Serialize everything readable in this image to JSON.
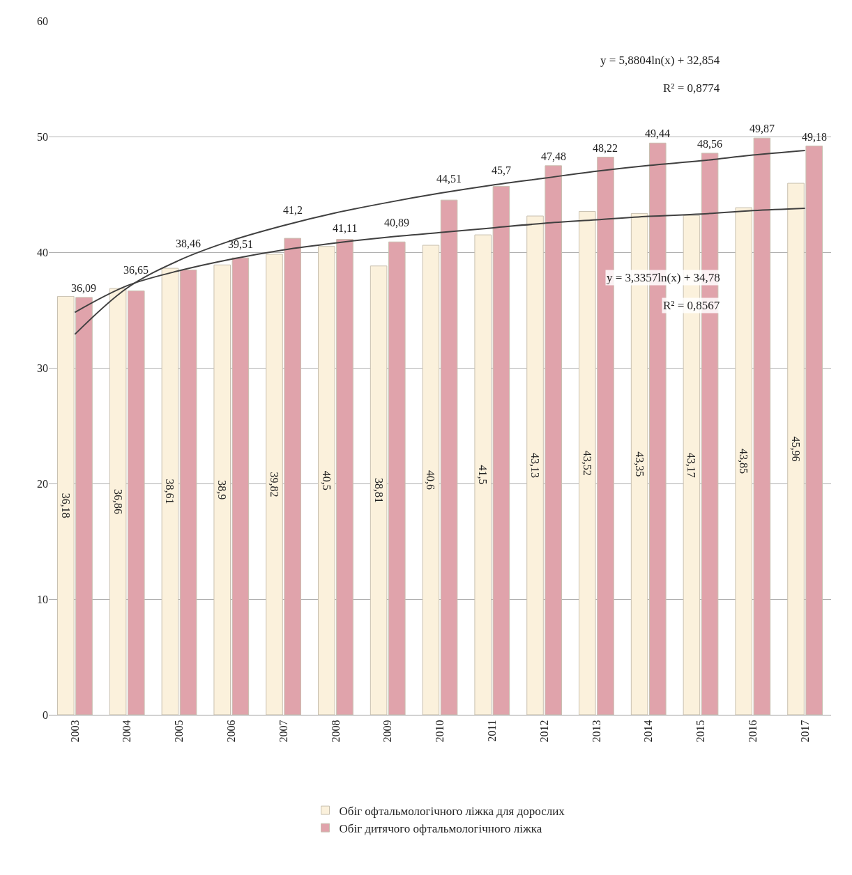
{
  "chart_data": {
    "type": "bar",
    "categories": [
      "2003",
      "2004",
      "2005",
      "2006",
      "2007",
      "2008",
      "2009",
      "2010",
      "2011",
      "2012",
      "2013",
      "2014",
      "2015",
      "2016",
      "2017"
    ],
    "series": [
      {
        "name": "Обіг офтальмологічного ліжка для дорослих",
        "color": "#fbf1dc",
        "values": [
          36.18,
          36.86,
          38.61,
          38.9,
          39.82,
          40.5,
          38.81,
          40.6,
          41.5,
          43.13,
          43.52,
          43.35,
          43.17,
          43.85,
          45.96
        ],
        "value_labels": [
          "36,18",
          "36,86",
          "38,61",
          "38,9",
          "39,82",
          "40,5",
          "38,81",
          "40,6",
          "41,5",
          "43,13",
          "43,52",
          "43,35",
          "43,17",
          "43,85",
          "45,96"
        ]
      },
      {
        "name": "Обіг дитячого офтальмологічного ліжка",
        "color": "#e0a3ab",
        "values": [
          36.09,
          36.65,
          38.46,
          39.51,
          41.2,
          41.11,
          40.89,
          44.51,
          45.7,
          47.48,
          48.22,
          49.44,
          48.56,
          49.87,
          49.18
        ],
        "value_labels": [
          "36,09",
          "36,65",
          "38,46",
          "39,51",
          "41,2",
          "41,11",
          "40,89",
          "44,51",
          "45,7",
          "47,48",
          "48,22",
          "49,44",
          "48,56",
          "49,87",
          "49,18"
        ]
      },
      {
        "type": "line",
        "color": "#404040",
        "values": [
          32.9,
          36.9,
          39.3,
          41.0,
          42.3,
          43.4,
          44.3,
          45.1,
          45.8,
          46.4,
          47.0,
          47.5,
          47.9,
          48.4,
          48.8
        ]
      },
      {
        "type": "line",
        "color": "#404040",
        "values": [
          34.8,
          37.1,
          38.4,
          39.4,
          40.2,
          40.8,
          41.3,
          41.7,
          42.1,
          42.5,
          42.8,
          43.1,
          43.3,
          43.6,
          43.8
        ]
      }
    ],
    "annotations": [
      "y = 5,8804ln(x) + 32,854",
      "R² = 0,8774",
      "y = 3,3357ln(x) + 34,78",
      "R² = 0,8567"
    ],
    "ylim": [
      0,
      60
    ],
    "yticks": [
      0,
      10,
      20,
      30,
      40,
      50,
      60
    ],
    "grid": "y",
    "legend": "bottom",
    "marker": "none",
    "line_style": "solid"
  }
}
